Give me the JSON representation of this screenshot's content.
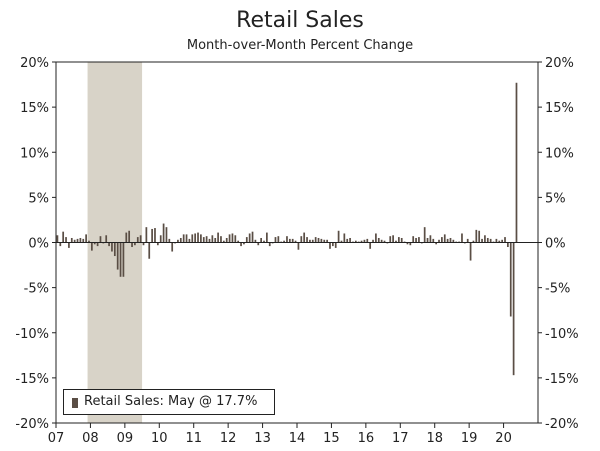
{
  "colors": {
    "bars": "#5a4e45",
    "recession": "#d8d3c8",
    "axis": "#222222"
  },
  "chart_data": {
    "type": "bar",
    "title": "Retail Sales",
    "subtitle": "Month-over-Month Percent Change",
    "xlabel": "",
    "ylabel": "",
    "ylim": [
      -20,
      20
    ],
    "y_ticks": [
      20,
      15,
      10,
      5,
      0,
      -5,
      -10,
      -15,
      -20
    ],
    "y_tick_labels": [
      "20%",
      "15%",
      "10%",
      "5%",
      "0%",
      "-5%",
      "-10%",
      "-15%",
      "-20%"
    ],
    "x_tick_labels": [
      "07",
      "08",
      "09",
      "10",
      "11",
      "12",
      "13",
      "14",
      "15",
      "16",
      "17",
      "18",
      "19",
      "20"
    ],
    "x_start": "2007-01",
    "x_end": "2020-05",
    "recession_shading": {
      "start": "2007-12",
      "end": "2009-06"
    },
    "legend": {
      "placement": "bottom-left",
      "label": "Retail Sales: May @ 17.7%"
    },
    "series": [
      {
        "frequency": "monthly",
        "values": [
          0.8,
          -0.4,
          1.2,
          0.6,
          -0.6,
          0.5,
          0.3,
          0.4,
          0.5,
          0.4,
          0.9,
          0.2,
          -0.9,
          -0.2,
          -0.4,
          0.7,
          -0.1,
          0.8,
          -0.4,
          -1.0,
          -1.5,
          -3.0,
          -3.8,
          -3.8,
          1.1,
          1.3,
          -0.5,
          -0.3,
          0.6,
          0.8,
          -0.3,
          1.7,
          -1.8,
          1.5,
          1.6,
          -0.3,
          0.8,
          2.1,
          1.7,
          0.4,
          -1.0,
          -0.1,
          0.3,
          0.5,
          0.9,
          0.9,
          0.4,
          0.9,
          1.0,
          1.1,
          0.9,
          0.6,
          0.7,
          0.4,
          0.8,
          0.5,
          1.1,
          0.7,
          0.2,
          0.5,
          0.9,
          1.0,
          0.8,
          0.2,
          -0.4,
          -0.2,
          0.6,
          1.0,
          1.2,
          0.3,
          -0.3,
          0.5,
          0.2,
          1.1,
          -0.4,
          -0.1,
          0.6,
          0.7,
          0.1,
          0.2,
          0.7,
          0.4,
          0.4,
          0.2,
          -0.8,
          0.7,
          1.1,
          0.6,
          0.3,
          0.3,
          0.6,
          0.5,
          0.4,
          0.3,
          0.3,
          -0.7,
          -0.4,
          -0.6,
          1.3,
          0.2,
          1.0,
          0.4,
          0.5,
          0.1,
          0.2,
          0.1,
          0.2,
          0.3,
          0.4,
          -0.7,
          0.3,
          1.0,
          0.5,
          0.3,
          0.2,
          -0.1,
          0.7,
          0.8,
          0.2,
          0.6,
          0.5,
          0.1,
          -0.2,
          -0.3,
          0.7,
          0.5,
          0.6,
          -0.1,
          1.7,
          0.5,
          0.8,
          0.4,
          -0.2,
          0.3,
          0.6,
          0.9,
          0.4,
          0.5,
          0.3,
          0.1,
          0.1,
          1.0,
          -0.1,
          0.4,
          -2.0,
          0.2,
          1.4,
          1.3,
          0.4,
          0.8,
          0.5,
          0.4,
          0.1,
          0.4,
          0.2,
          0.3,
          0.6,
          -0.5,
          -8.2,
          -14.7,
          17.7
        ]
      }
    ]
  }
}
